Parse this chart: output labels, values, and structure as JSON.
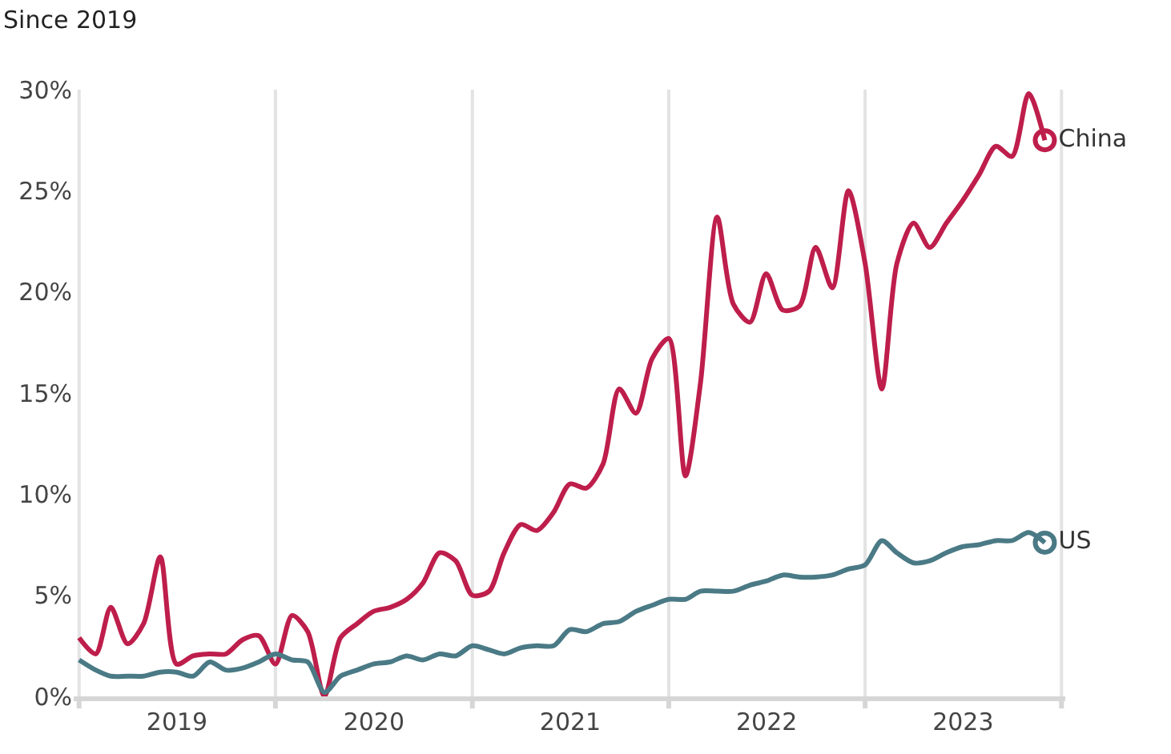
{
  "chart_data": {
    "type": "line",
    "title": "Since 2019",
    "x": [
      "2019-01",
      "2019-02",
      "2019-03",
      "2019-04",
      "2019-05",
      "2019-06",
      "2019-07",
      "2019-08",
      "2019-09",
      "2019-10",
      "2019-11",
      "2019-12",
      "2020-01",
      "2020-02",
      "2020-03",
      "2020-04",
      "2020-05",
      "2020-06",
      "2020-07",
      "2020-08",
      "2020-09",
      "2020-10",
      "2020-11",
      "2020-12",
      "2021-01",
      "2021-02",
      "2021-03",
      "2021-04",
      "2021-05",
      "2021-06",
      "2021-07",
      "2021-08",
      "2021-09",
      "2021-10",
      "2021-11",
      "2021-12",
      "2022-01",
      "2022-02",
      "2022-03",
      "2022-04",
      "2022-05",
      "2022-06",
      "2022-07",
      "2022-08",
      "2022-09",
      "2022-10",
      "2022-11",
      "2022-12",
      "2023-01",
      "2023-02",
      "2023-03",
      "2023-04",
      "2023-05",
      "2023-06",
      "2023-07",
      "2023-08",
      "2023-09",
      "2023-10",
      "2023-11",
      "2023-12"
    ],
    "series": [
      {
        "name": "China",
        "color": "#be1e4b",
        "values": [
          2.9,
          2.1,
          4.4,
          2.6,
          3.6,
          6.9,
          1.6,
          2.0,
          2.1,
          2.1,
          2.8,
          3.0,
          1.6,
          4.0,
          3.2,
          0.0,
          2.9,
          3.6,
          4.2,
          4.4,
          4.8,
          5.6,
          7.1,
          6.7,
          5.0,
          5.2,
          7.1,
          8.5,
          8.2,
          9.1,
          10.5,
          10.3,
          11.5,
          15.2,
          14.0,
          16.7,
          17.7,
          10.9,
          15.5,
          23.7,
          19.4,
          18.5,
          20.9,
          19.1,
          19.3,
          22.2,
          20.2,
          25.0,
          21.4,
          15.2,
          21.4,
          23.4,
          22.2,
          23.4,
          24.5,
          25.8,
          27.2,
          26.7,
          29.8,
          27.5
        ]
      },
      {
        "name": "US",
        "color": "#4a7a85",
        "values": [
          1.8,
          1.3,
          1.0,
          1.0,
          1.0,
          1.2,
          1.2,
          1.0,
          1.7,
          1.3,
          1.4,
          1.7,
          2.1,
          1.8,
          1.7,
          0.2,
          1.0,
          1.3,
          1.6,
          1.7,
          2.0,
          1.8,
          2.1,
          2.0,
          2.5,
          2.3,
          2.1,
          2.4,
          2.5,
          2.5,
          3.3,
          3.2,
          3.6,
          3.7,
          4.2,
          4.5,
          4.8,
          4.8,
          5.2,
          5.2,
          5.2,
          5.5,
          5.7,
          6.0,
          5.9,
          5.9,
          6.0,
          6.3,
          6.5,
          7.7,
          7.1,
          6.6,
          6.7,
          7.1,
          7.4,
          7.5,
          7.7,
          7.7,
          8.1,
          7.6
        ]
      }
    ],
    "xlim": [
      "2018-12-22",
      "2024-01-08"
    ],
    "xticks": [
      {
        "value": "2019-01-01",
        "label": null
      },
      {
        "value": "2019-07-02",
        "label": "2019"
      },
      {
        "value": "2020-01-01",
        "label": null
      },
      {
        "value": "2020-07-02",
        "label": "2020"
      },
      {
        "value": "2021-01-01",
        "label": null
      },
      {
        "value": "2021-07-02",
        "label": "2021"
      },
      {
        "value": "2022-01-01",
        "label": null
      },
      {
        "value": "2022-07-02",
        "label": "2022"
      },
      {
        "value": "2023-01-01",
        "label": null
      },
      {
        "value": "2023-07-02",
        "label": "2023"
      },
      {
        "value": "2024-01-01",
        "label": null
      }
    ],
    "ylim": [
      0,
      30
    ],
    "yticks": [
      {
        "value": 0,
        "label": "0%"
      },
      {
        "value": 5,
        "label": "5%"
      },
      {
        "value": 10,
        "label": "10%"
      },
      {
        "value": 15,
        "label": "15%"
      },
      {
        "value": 20,
        "label": "20%"
      },
      {
        "value": 25,
        "label": "25%"
      },
      {
        "value": 30,
        "label": "30%"
      }
    ],
    "grid": "x",
    "legend": false,
    "marker": "none",
    "line_style": "solid"
  }
}
